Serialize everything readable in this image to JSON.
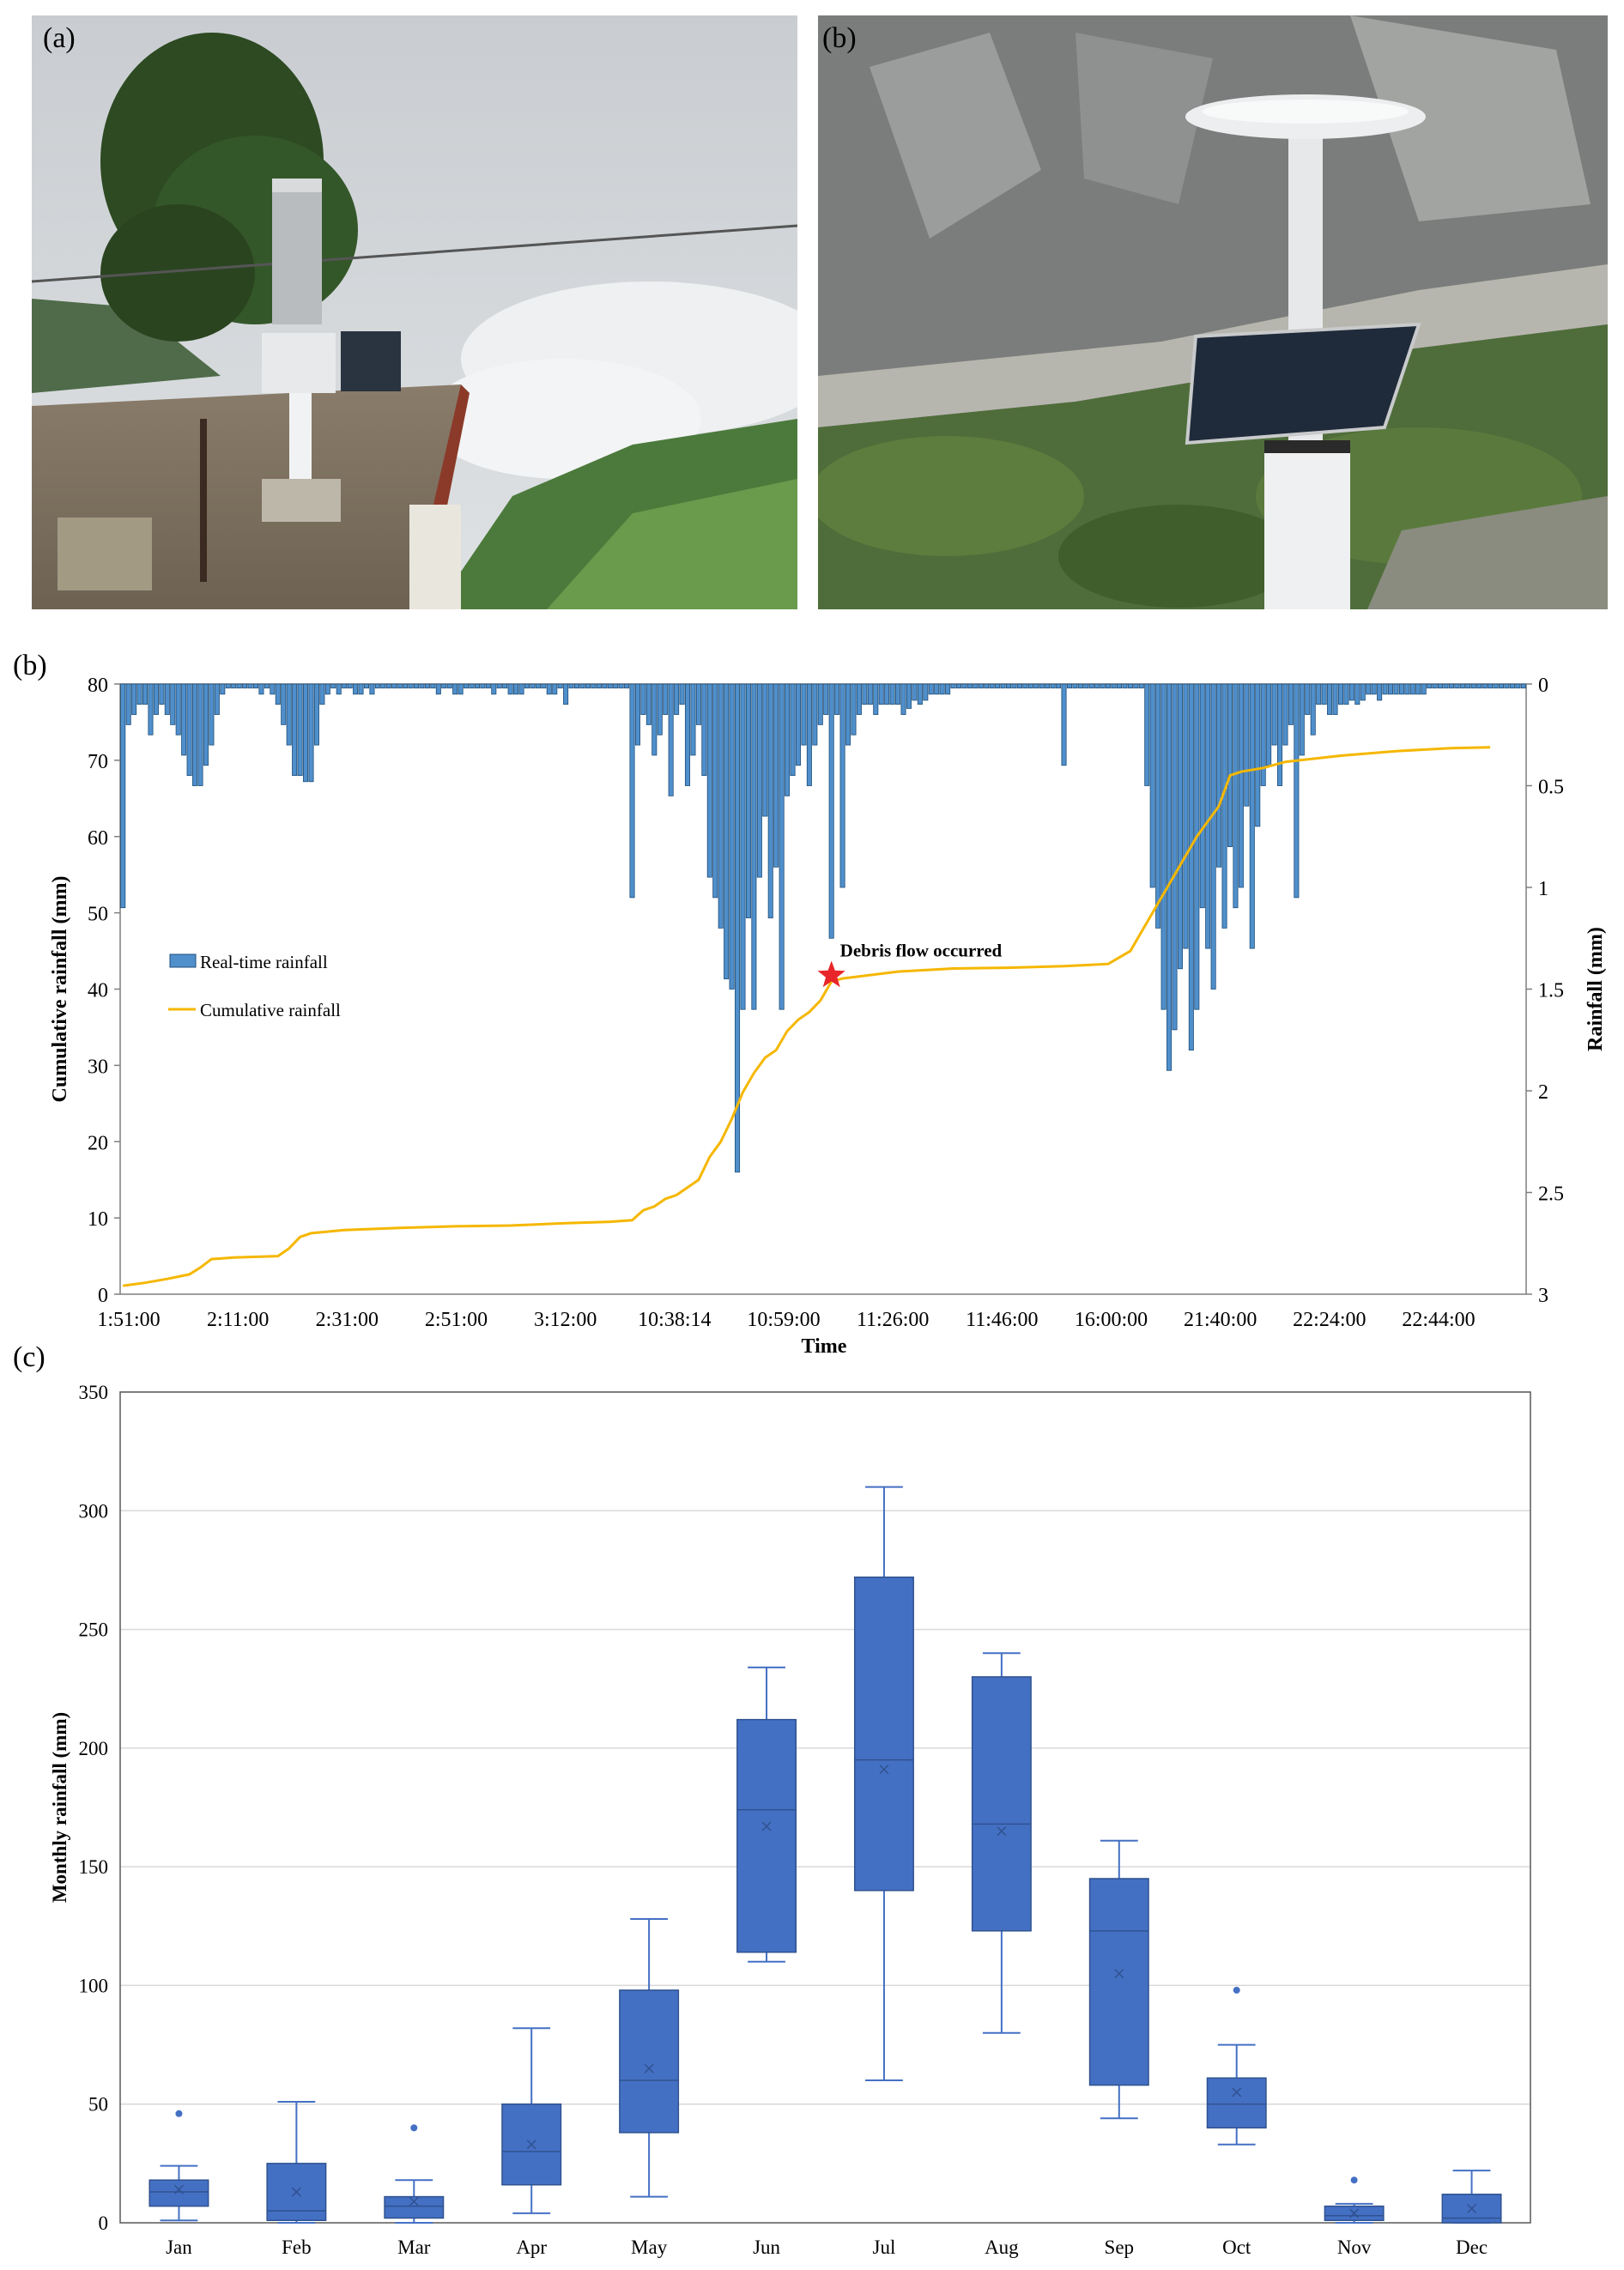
{
  "panels": {
    "photo_a_label": "(a)",
    "photo_b_label": "(b)",
    "chart_b_label": "(b)",
    "chart_c_label": "(c)"
  },
  "chart_data": [
    {
      "type": "bar+line",
      "title": "",
      "xlabel": "Time",
      "ylabel_left": "Cumulative rainfall (mm)",
      "ylabel_right": "Rainfall (mm)",
      "ylim_left": [
        0,
        80
      ],
      "ylim_right": [
        3,
        0
      ],
      "right_axis_inverted": true,
      "yticks_left": [
        0,
        10,
        20,
        30,
        40,
        50,
        60,
        70,
        80
      ],
      "yticks_right": [
        "0",
        "0.5",
        "1",
        "1.5",
        "2",
        "2.5",
        "3"
      ],
      "x_tick_labels": [
        "1:51:00",
        "2:11:00",
        "2:31:00",
        "2:51:00",
        "3:12:00",
        "10:38:14",
        "10:59:00",
        "11:26:00",
        "11:46:00",
        "16:00:00",
        "21:40:00",
        "22:24:00",
        "22:44:00"
      ],
      "legend": {
        "placement": "left-middle",
        "entries": [
          {
            "name": "Real-time rainfall",
            "color": "#4f8fcb",
            "marker": "bar"
          },
          {
            "name": "Cumulative rainfall",
            "color": "#f5b700",
            "marker": "line"
          }
        ]
      },
      "annotation": {
        "text": "Debris flow occurred",
        "marker": "star",
        "color": "#e8262a",
        "at_index": 128,
        "value": 41.8
      },
      "series": [
        {
          "name": "Real-time rainfall",
          "kind": "bar",
          "axis": "right",
          "color": "#4f8fcb",
          "values": [
            1.1,
            0.2,
            0.15,
            0.1,
            0.1,
            0.25,
            0.15,
            0.1,
            0.15,
            0.2,
            0.25,
            0.35,
            0.45,
            0.5,
            0.5,
            0.4,
            0.3,
            0.15,
            0.05,
            0.02,
            0.02,
            0.02,
            0.02,
            0.02,
            0.02,
            0.05,
            0.02,
            0.05,
            0.1,
            0.2,
            0.3,
            0.45,
            0.45,
            0.48,
            0.48,
            0.3,
            0.1,
            0.05,
            0.02,
            0.05,
            0.02,
            0.02,
            0.05,
            0.05,
            0.02,
            0.05,
            0.02,
            0.02,
            0.02,
            0.02,
            0.02,
            0.02,
            0.02,
            0.02,
            0.02,
            0.02,
            0.02,
            0.05,
            0.02,
            0.02,
            0.05,
            0.05,
            0.02,
            0.02,
            0.02,
            0.02,
            0.02,
            0.05,
            0.02,
            0.02,
            0.05,
            0.05,
            0.05,
            0.02,
            0.02,
            0.02,
            0.02,
            0.05,
            0.05,
            0.02,
            0.1,
            0.02,
            0.02,
            0.02,
            0.02,
            0.02,
            0.02,
            0.02,
            0.02,
            0.02,
            0.02,
            0.02,
            1.05,
            0.3,
            0.15,
            0.2,
            0.35,
            0.25,
            0.15,
            0.55,
            0.15,
            0.1,
            0.5,
            0.35,
            0.2,
            0.45,
            0.95,
            1.05,
            1.2,
            1.45,
            1.5,
            2.4,
            1.6,
            1.15,
            1.6,
            0.95,
            0.65,
            1.15,
            0.9,
            1.6,
            0.55,
            0.45,
            0.4,
            0.3,
            0.5,
            0.3,
            0.2,
            0.15,
            1.25,
            0.15,
            1.0,
            0.3,
            0.25,
            0.15,
            0.1,
            0.1,
            0.15,
            0.1,
            0.1,
            0.1,
            0.1,
            0.15,
            0.12,
            0.08,
            0.1,
            0.08,
            0.05,
            0.05,
            0.05,
            0.05,
            0.02,
            0.02,
            0.02,
            0.02,
            0.02,
            0.02,
            0.02,
            0.02,
            0.02,
            0.02,
            0.02,
            0.02,
            0.02,
            0.02,
            0.02,
            0.02,
            0.02,
            0.02,
            0.02,
            0.02,
            0.4,
            0.02,
            0.02,
            0.02,
            0.02,
            0.02,
            0.02,
            0.02,
            0.02,
            0.02,
            0.02,
            0.02,
            0.02,
            0.02,
            0.02,
            0.5,
            1.0,
            1.2,
            1.6,
            1.9,
            1.7,
            1.4,
            1.3,
            1.8,
            1.6,
            1.1,
            1.3,
            1.5,
            0.9,
            1.2,
            0.8,
            1.1,
            1.0,
            0.6,
            1.3,
            0.7,
            0.5,
            0.4,
            0.3,
            0.5,
            0.3,
            0.2,
            1.05,
            0.35,
            0.15,
            0.25,
            0.1,
            0.1,
            0.15,
            0.15,
            0.1,
            0.1,
            0.08,
            0.1,
            0.08,
            0.05,
            0.05,
            0.08,
            0.05,
            0.05,
            0.05,
            0.05,
            0.05,
            0.05,
            0.05,
            0.05,
            0.02,
            0.02,
            0.02,
            0.02,
            0.02,
            0.02,
            0.02,
            0.02,
            0.02,
            0.02,
            0.02,
            0.02,
            0.02,
            0.02,
            0.02,
            0.02,
            0.02,
            0.02
          ]
        },
        {
          "name": "Cumulative rainfall",
          "kind": "line",
          "axis": "left",
          "color": "#f5b700",
          "points": [
            [
              0,
              1.1
            ],
            [
              4,
              1.5
            ],
            [
              8,
              2
            ],
            [
              12,
              2.6
            ],
            [
              14,
              3.5
            ],
            [
              16,
              4.6
            ],
            [
              20,
              4.8
            ],
            [
              28,
              5
            ],
            [
              30,
              6
            ],
            [
              32,
              7.5
            ],
            [
              34,
              8
            ],
            [
              40,
              8.4
            ],
            [
              50,
              8.7
            ],
            [
              60,
              8.9
            ],
            [
              70,
              9
            ],
            [
              80,
              9.3
            ],
            [
              88,
              9.5
            ],
            [
              92,
              9.7
            ],
            [
              94,
              11
            ],
            [
              96,
              11.5
            ],
            [
              98,
              12.5
            ],
            [
              100,
              13
            ],
            [
              102,
              14
            ],
            [
              104,
              15
            ],
            [
              106,
              18
            ],
            [
              108,
              20
            ],
            [
              110,
              23
            ],
            [
              112,
              26.5
            ],
            [
              114,
              29
            ],
            [
              116,
              31
            ],
            [
              118,
              32
            ],
            [
              120,
              34.5
            ],
            [
              122,
              36
            ],
            [
              124,
              37
            ],
            [
              126,
              38.5
            ],
            [
              128,
              41
            ],
            [
              130,
              41.4
            ],
            [
              140,
              42.3
            ],
            [
              150,
              42.7
            ],
            [
              160,
              42.8
            ],
            [
              170,
              43
            ],
            [
              178,
              43.3
            ],
            [
              182,
              45
            ],
            [
              186,
              50
            ],
            [
              190,
              55
            ],
            [
              194,
              60
            ],
            [
              198,
              64
            ],
            [
              200,
              68
            ],
            [
              202,
              68.5
            ],
            [
              206,
              69
            ],
            [
              210,
              69.8
            ],
            [
              220,
              70.6
            ],
            [
              230,
              71.2
            ],
            [
              240,
              71.6
            ],
            [
              247,
              71.7
            ]
          ]
        }
      ]
    },
    {
      "type": "box",
      "title": "",
      "xlabel": "",
      "ylabel": "Monthly rainfall (mm)",
      "ylim": [
        0,
        350
      ],
      "yticks": [
        0,
        50,
        100,
        150,
        200,
        250,
        300,
        350
      ],
      "grid": true,
      "color": "#4470c4",
      "categories": [
        "Jan",
        "Feb",
        "Mar",
        "Apr",
        "May",
        "Jun",
        "Jul",
        "Aug",
        "Sep",
        "Oct",
        "Nov",
        "Dec"
      ],
      "boxes": [
        {
          "min": 1,
          "q1": 7,
          "median": 13,
          "q3": 18,
          "max": 24,
          "mean": 14,
          "outliers": [
            46
          ]
        },
        {
          "min": 0,
          "q1": 1,
          "median": 5,
          "q3": 25,
          "max": 51,
          "mean": 13,
          "outliers": []
        },
        {
          "min": 0,
          "q1": 2,
          "median": 7,
          "q3": 11,
          "max": 18,
          "mean": 9,
          "outliers": [
            40
          ]
        },
        {
          "min": 4,
          "q1": 16,
          "median": 30,
          "q3": 50,
          "max": 82,
          "mean": 33,
          "outliers": []
        },
        {
          "min": 11,
          "q1": 38,
          "median": 60,
          "q3": 98,
          "max": 128,
          "mean": 65,
          "outliers": []
        },
        {
          "min": 110,
          "q1": 114,
          "median": 174,
          "q3": 212,
          "max": 234,
          "mean": 167,
          "outliers": []
        },
        {
          "min": 60,
          "q1": 140,
          "median": 195,
          "q3": 272,
          "max": 310,
          "mean": 191,
          "outliers": []
        },
        {
          "min": 80,
          "q1": 123,
          "median": 168,
          "q3": 230,
          "max": 240,
          "mean": 165,
          "outliers": []
        },
        {
          "min": 44,
          "q1": 58,
          "median": 123,
          "q3": 145,
          "max": 161,
          "mean": 105,
          "outliers": []
        },
        {
          "min": 33,
          "q1": 40,
          "median": 50,
          "q3": 61,
          "max": 75,
          "mean": 55,
          "outliers": [
            98
          ]
        },
        {
          "min": 0,
          "q1": 1,
          "median": 3,
          "q3": 7,
          "max": 8,
          "mean": 4,
          "outliers": [
            18
          ]
        },
        {
          "min": 0,
          "q1": 0,
          "median": 2,
          "q3": 12,
          "max": 22,
          "mean": 6,
          "outliers": []
        }
      ]
    }
  ]
}
